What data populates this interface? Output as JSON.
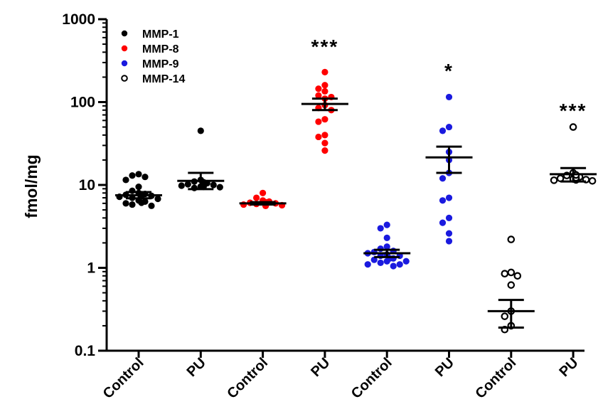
{
  "chart_data": {
    "type": "scatter",
    "title": "",
    "xlabel": "",
    "ylabel": "fmol/mg",
    "yscale": "log",
    "ylim": [
      0.1,
      1000
    ],
    "yticks": [
      "0.1",
      "1",
      "10",
      "100",
      "1000"
    ],
    "categories": [
      "Control",
      "PU",
      "Control",
      "PU",
      "Control",
      "PU",
      "Control",
      "PU"
    ],
    "legend": {
      "position": "top-left"
    },
    "series": [
      {
        "name": "MMP-1",
        "color": "#000000",
        "marker": "filled",
        "groups": [
          {
            "category_index": 0,
            "mean": 7.5,
            "sem_low": 6.9,
            "sem_high": 8.2,
            "points": [
              13.5,
              13,
              12.5,
              11.5,
              9.5,
              8.5,
              8,
              7.8,
              7.6,
              7.4,
              7.2,
              7,
              6.8,
              6.5,
              6.3,
              6,
              5.8,
              5.6,
              6.1,
              7.3
            ]
          },
          {
            "category_index": 1,
            "mean": 11.2,
            "sem_low": 8.9,
            "sem_high": 14,
            "points": [
              45,
              11.5,
              11,
              10.5,
              10.2,
              10,
              9.8,
              9.6,
              9.4,
              9.2,
              9.5,
              10.8
            ]
          }
        ]
      },
      {
        "name": "MMP-8",
        "color": "#ff0000",
        "marker": "filled",
        "groups": [
          {
            "category_index": 2,
            "mean": 6,
            "sem_low": 5.8,
            "sem_high": 6.2,
            "points": [
              8,
              7,
              6.5,
              6.3,
              6.1,
              6,
              5.9,
              5.8,
              5.7,
              5.6,
              5.6,
              5.7,
              5.8,
              6.2,
              5.9,
              6.1
            ]
          },
          {
            "category_index": 3,
            "mean": 95,
            "sem_low": 80,
            "sem_high": 110,
            "points": [
              230,
              160,
              145,
              135,
              120,
              115,
              110,
              92,
              85,
              80,
              62,
              58,
              40,
              38,
              32,
              26
            ]
          }
        ]
      },
      {
        "name": "MMP-9",
        "color": "#1a1adf",
        "marker": "filled",
        "groups": [
          {
            "category_index": 4,
            "mean": 1.5,
            "sem_low": 1.35,
            "sem_high": 1.65,
            "points": [
              3.3,
              3,
              2.3,
              1.8,
              1.7,
              1.6,
              1.55,
              1.45,
              1.4,
              1.3,
              1.25,
              1.2,
              1.15,
              1.1,
              1.1,
              1.05,
              1.2,
              1.3,
              1.4,
              1.5
            ]
          },
          {
            "category_index": 5,
            "mean": 21.5,
            "sem_low": 14,
            "sem_high": 29,
            "points": [
              115,
              50,
              45,
              25,
              20,
              14,
              12,
              7,
              6.5,
              4,
              3.5,
              2.6,
              2.1
            ]
          }
        ]
      },
      {
        "name": "MMP-14",
        "color": "#000000",
        "marker": "open",
        "groups": [
          {
            "category_index": 6,
            "mean": 0.3,
            "sem_low": 0.19,
            "sem_high": 0.41,
            "points": [
              2.2,
              0.88,
              0.85,
              0.8,
              0.62,
              0.3,
              0.26,
              0.2,
              0.18
            ]
          },
          {
            "category_index": 7,
            "mean": 13.5,
            "sem_low": 11,
            "sem_high": 16,
            "points": [
              50,
              14,
              13,
              12.5,
              12,
              11.8,
              11.6,
              11.4,
              11.2,
              11.5,
              12.2,
              13.2
            ]
          }
        ]
      }
    ],
    "annotations": [
      {
        "category_index": 3,
        "text": "***",
        "y": 470
      },
      {
        "category_index": 5,
        "text": "*",
        "y": 240
      },
      {
        "category_index": 7,
        "text": "***",
        "y": 80
      }
    ]
  }
}
